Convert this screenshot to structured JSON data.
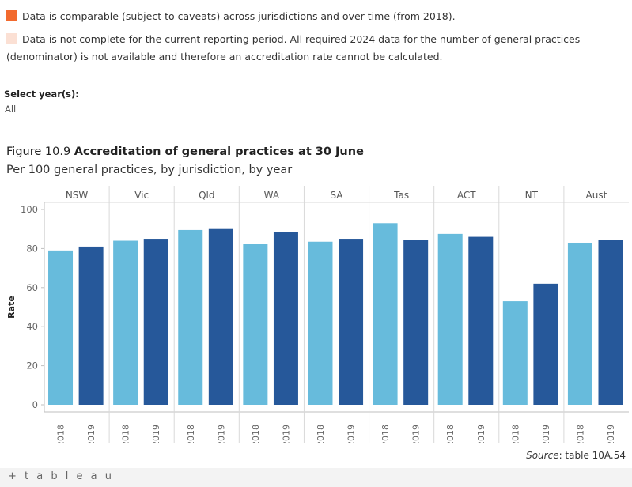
{
  "legend": [
    {
      "color": "#f26a2e",
      "text": "Data is comparable (subject to caveats) across jurisdictions and over time (from 2018)."
    },
    {
      "color": "#fbe0d4",
      "text": "Data is not complete for the current reporting period. All required 2024 data for the number of general practices (denominator) is not available and therefore an accreditation rate cannot be calculated."
    }
  ],
  "filter": {
    "label": "Select year(s):",
    "value": "All"
  },
  "figure": {
    "number": "Figure 10.9",
    "title": "Accreditation of general practices at 30 June",
    "subtitle": "Per 100 general practices, by jurisdiction, by year"
  },
  "source": {
    "label": "Source",
    "text": ": table 10A.54"
  },
  "footer": {
    "logo_text": "+ t a b l e a u"
  },
  "chart_data": {
    "type": "bar",
    "categories": [
      "NSW",
      "Vic",
      "Qld",
      "WA",
      "SA",
      "Tas",
      "ACT",
      "NT",
      "Aust"
    ],
    "years": [
      "2018",
      "2019"
    ],
    "series": [
      {
        "name": "2018",
        "color": "#67bbdc",
        "values": [
          79,
          84,
          89.5,
          82.5,
          83.5,
          93,
          87.5,
          53,
          83
        ]
      },
      {
        "name": "2019",
        "color": "#26589a",
        "values": [
          81,
          85,
          90,
          88.5,
          85,
          84.5,
          86,
          62,
          84.5
        ]
      }
    ],
    "ylabel": "Rate",
    "ylim": [
      0,
      100
    ],
    "yticks": [
      0,
      20,
      40,
      60,
      80,
      100
    ],
    "grid": false
  }
}
